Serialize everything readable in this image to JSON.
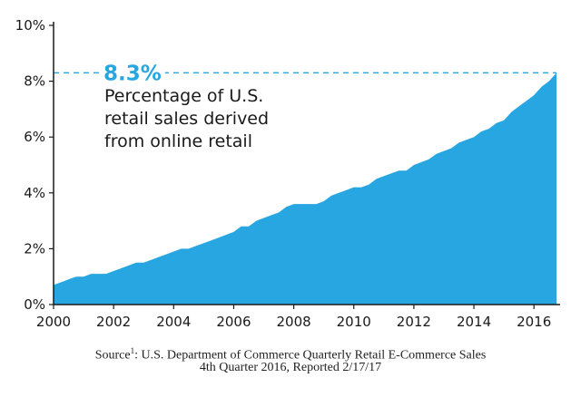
{
  "chart_data": {
    "type": "area",
    "title": "",
    "xlabel": "",
    "ylabel": "",
    "x_ticks": [
      "2000",
      "2002",
      "2004",
      "2006",
      "2008",
      "2010",
      "2012",
      "2014",
      "2016"
    ],
    "y_ticks": [
      "0%",
      "2%",
      "4%",
      "6%",
      "8%",
      "10%"
    ],
    "xlim": [
      2000,
      2016.75
    ],
    "ylim": [
      0,
      10
    ],
    "grid": false,
    "fill_color": "#27a6e1",
    "series": [
      {
        "x": [
          2000.0,
          2000.25,
          2000.5,
          2000.75,
          2001.0,
          2001.25,
          2001.5,
          2001.75,
          2002.0,
          2002.25,
          2002.5,
          2002.75,
          2003.0,
          2003.25,
          2003.5,
          2003.75,
          2004.0,
          2004.25,
          2004.5,
          2004.75,
          2005.0,
          2005.25,
          2005.5,
          2005.75,
          2006.0,
          2006.25,
          2006.5,
          2006.75,
          2007.0,
          2007.25,
          2007.5,
          2007.75,
          2008.0,
          2008.25,
          2008.5,
          2008.75,
          2009.0,
          2009.25,
          2009.5,
          2009.75,
          2010.0,
          2010.25,
          2010.5,
          2010.75,
          2011.0,
          2011.25,
          2011.5,
          2011.75,
          2012.0,
          2012.25,
          2012.5,
          2012.75,
          2013.0,
          2013.25,
          2013.5,
          2013.75,
          2014.0,
          2014.25,
          2014.5,
          2014.75,
          2015.0,
          2015.25,
          2015.5,
          2015.75,
          2016.0,
          2016.25,
          2016.5,
          2016.75
        ],
        "values": [
          0.7,
          0.8,
          0.9,
          1.0,
          1.0,
          1.1,
          1.1,
          1.1,
          1.2,
          1.3,
          1.4,
          1.5,
          1.5,
          1.6,
          1.7,
          1.8,
          1.9,
          2.0,
          2.0,
          2.1,
          2.2,
          2.3,
          2.4,
          2.5,
          2.6,
          2.8,
          2.8,
          3.0,
          3.1,
          3.2,
          3.3,
          3.5,
          3.6,
          3.6,
          3.6,
          3.6,
          3.7,
          3.9,
          4.0,
          4.1,
          4.2,
          4.2,
          4.3,
          4.5,
          4.6,
          4.7,
          4.8,
          4.8,
          5.0,
          5.1,
          5.2,
          5.4,
          5.5,
          5.6,
          5.8,
          5.9,
          6.0,
          6.2,
          6.3,
          6.5,
          6.6,
          6.9,
          7.1,
          7.3,
          7.5,
          7.8,
          8.0,
          8.3
        ]
      }
    ],
    "annotation": {
      "value_label": "8.3%",
      "value": 8.3,
      "lines": [
        "Percentage of U.S.",
        "retail sales derived",
        "from online retail"
      ]
    }
  },
  "source": {
    "line1_prefix": "Source",
    "line1_sup": "1",
    "line1_rest": ": U.S. Department of Commerce Quarterly Retail E-Commerce Sales",
    "line2": "4th Quarter 2016, Reported 2/17/17"
  }
}
